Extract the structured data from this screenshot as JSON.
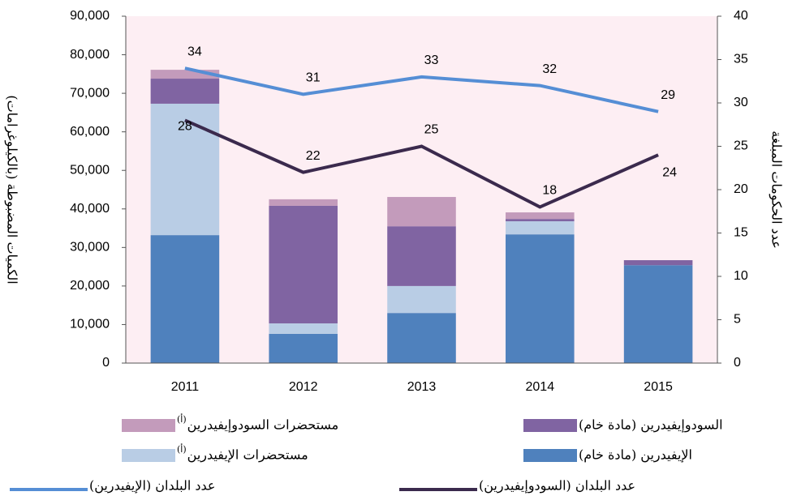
{
  "chart_data": {
    "type": "bar",
    "categories": [
      "2011",
      "2012",
      "2013",
      "2014",
      "2015"
    ],
    "ylabel": "الكميات المضبوطة (بالكيلوغرامات)",
    "y2label": "عدد الحكومات المبلغة",
    "ylim": [
      0,
      90000
    ],
    "yticks": [
      {
        "value": 0,
        "label": "0"
      },
      {
        "value": 10000,
        "label": "10,000"
      },
      {
        "value": 20000,
        "label": "20,000"
      },
      {
        "value": 30000,
        "label": "30,000"
      },
      {
        "value": 40000,
        "label": "40,000"
      },
      {
        "value": 50000,
        "label": "50,000"
      },
      {
        "value": 60000,
        "label": "60,000"
      },
      {
        "value": 70000,
        "label": "70,000"
      },
      {
        "value": 80000,
        "label": "80,000"
      },
      {
        "value": 90000,
        "label": "90,000"
      }
    ],
    "y2lim": [
      0,
      40
    ],
    "y2ticks": [
      0,
      5,
      10,
      15,
      20,
      25,
      30,
      35,
      40
    ],
    "background": "#fdeef3",
    "series": [
      {
        "name": "الإيفيدرين (مادة خام)",
        "color": "#4f81bd",
        "kind": "bar",
        "values": [
          33200,
          7600,
          13000,
          33400,
          25400
        ]
      },
      {
        "name": "مستحضرات الإيفيدرين",
        "note": "(أ)",
        "color": "#b9cde5",
        "kind": "bar",
        "values": [
          34100,
          2700,
          7000,
          3400,
          0
        ]
      },
      {
        "name": "السودوإيفيدرين (مادة خام)",
        "color": "#8064a2",
        "kind": "bar",
        "values": [
          6500,
          30500,
          15500,
          600,
          1300
        ]
      },
      {
        "name": "مستحضرات السودوإيفيدرين",
        "note": "(أ)",
        "color": "#c39bbb",
        "kind": "bar",
        "values": [
          2300,
          1700,
          7600,
          1700,
          0
        ]
      },
      {
        "name": "عدد البلدان (الإيفيدرين)",
        "color": "#558ed5",
        "kind": "line",
        "axis": "y2",
        "values": [
          34,
          31,
          33,
          32,
          29
        ]
      },
      {
        "name": "عدد البلدان (السودوإيفيدرين)",
        "color": "#3b2a4d",
        "kind": "line",
        "axis": "y2",
        "values": [
          28,
          22,
          25,
          18,
          24
        ]
      }
    ]
  }
}
